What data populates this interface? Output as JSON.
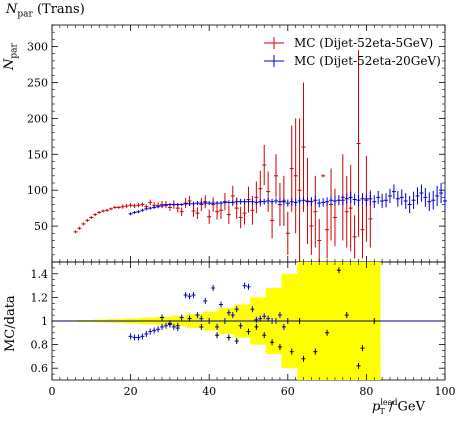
{
  "header": {
    "title_main": "N",
    "title_sub": "par",
    "title_rest": " (Trans)"
  },
  "axes": {
    "main_ylabel_main": "N",
    "main_ylabel_sub": "par",
    "ratio_ylabel": "MC/data",
    "xlabel_p": "p",
    "xlabel_sup": "lead",
    "xlabel_sub": "T",
    "xlabel_unit": " / GeV"
  },
  "legend": [
    {
      "label": "MC (Dijet-52eta-5GeV)",
      "color": "#cc0000"
    },
    {
      "label": "MC (Dijet-52eta-20GeV)",
      "color": "#0000cc"
    }
  ],
  "chart_data": {
    "type": "scatter",
    "x_range": [
      0,
      100
    ],
    "x_ticks": [
      0,
      20,
      40,
      60,
      80,
      100
    ],
    "main": {
      "ylim": [
        0,
        330
      ],
      "y_ticks": [
        50,
        100,
        150,
        200,
        250,
        300
      ],
      "series": [
        {
          "name": "MC (Dijet-52eta-5GeV)",
          "color": "#cc0000",
          "points": [
            [
              6,
              42,
              2
            ],
            [
              7,
              47,
              2
            ],
            [
              8,
              53,
              2
            ],
            [
              9,
              58,
              2
            ],
            [
              10,
              62,
              2
            ],
            [
              11,
              66,
              2
            ],
            [
              12,
              69,
              2
            ],
            [
              13,
              71,
              2
            ],
            [
              14,
              72,
              2
            ],
            [
              15,
              74,
              2
            ],
            [
              16,
              76,
              2
            ],
            [
              17,
              76,
              2
            ],
            [
              18,
              77,
              3
            ],
            [
              19,
              78,
              3
            ],
            [
              20,
              79,
              3
            ],
            [
              21,
              78,
              3
            ],
            [
              22,
              79,
              3
            ],
            [
              23,
              80,
              3
            ],
            [
              24,
              77,
              3
            ],
            [
              25,
              83,
              4
            ],
            [
              26,
              79,
              4
            ],
            [
              27,
              79,
              4
            ],
            [
              28,
              80,
              5
            ],
            [
              29,
              80,
              5
            ],
            [
              30,
              76,
              5
            ],
            [
              31,
              80,
              6
            ],
            [
              32,
              75,
              6
            ],
            [
              33,
              70,
              6
            ],
            [
              34,
              82,
              7
            ],
            [
              35,
              85,
              7
            ],
            [
              36,
              71,
              8
            ],
            [
              37,
              68,
              8
            ],
            [
              38,
              80,
              9
            ],
            [
              39,
              84,
              9
            ],
            [
              40,
              63,
              10
            ],
            [
              41,
              80,
              10
            ],
            [
              42,
              70,
              11
            ],
            [
              43,
              72,
              12
            ],
            [
              44,
              84,
              12
            ],
            [
              45,
              66,
              13
            ],
            [
              46,
              92,
              14
            ],
            [
              47,
              75,
              15
            ],
            [
              48,
              62,
              15
            ],
            [
              49,
              68,
              16
            ],
            [
              50,
              87,
              18
            ],
            [
              51,
              72,
              20
            ],
            [
              52,
              90,
              22
            ],
            [
              53,
              102,
              25
            ],
            [
              54,
              135,
              28
            ],
            [
              55,
              98,
              28
            ],
            [
              56,
              58,
              25
            ],
            [
              57,
              120,
              30
            ],
            [
              58,
              80,
              30
            ],
            [
              59,
              85,
              35
            ],
            [
              60,
              40,
              30
            ],
            [
              61,
              130,
              60
            ],
            [
              62,
              120,
              80
            ],
            [
              63,
              100,
              100
            ],
            [
              64,
              160,
              90
            ],
            [
              65,
              85,
              60
            ],
            [
              66,
              50,
              40
            ],
            [
              67,
              70,
              50
            ],
            [
              68,
              30,
              30
            ],
            [
              69,
              120,
              2
            ],
            [
              70,
              45,
              40
            ],
            [
              71,
              80,
              50
            ],
            [
              72,
              62,
              40
            ],
            [
              74,
              90,
              60
            ],
            [
              75,
              70,
              50
            ],
            [
              76,
              75,
              60
            ],
            [
              77,
              35,
              30
            ],
            [
              78,
              165,
              130
            ],
            [
              79,
              45,
              40
            ],
            [
              80,
              88,
              60
            ],
            [
              81,
              60,
              40
            ]
          ]
        },
        {
          "name": "MC (Dijet-52eta-20GeV)",
          "color": "#0000cc",
          "points": [
            [
              20,
              67,
              2
            ],
            [
              21,
              69,
              2
            ],
            [
              22,
              70,
              2
            ],
            [
              23,
              72,
              2
            ],
            [
              24,
              74,
              2
            ],
            [
              25,
              75,
              2
            ],
            [
              26,
              76,
              2
            ],
            [
              27,
              77,
              2
            ],
            [
              28,
              78,
              2
            ],
            [
              29,
              79,
              2
            ],
            [
              30,
              80,
              2
            ],
            [
              31,
              80,
              2
            ],
            [
              32,
              80,
              2
            ],
            [
              33,
              80,
              2
            ],
            [
              34,
              81,
              2
            ],
            [
              35,
              81,
              3
            ],
            [
              36,
              81,
              3
            ],
            [
              37,
              82,
              3
            ],
            [
              38,
              82,
              3
            ],
            [
              39,
              82,
              3
            ],
            [
              40,
              82,
              3
            ],
            [
              41,
              82,
              3
            ],
            [
              42,
              82,
              3
            ],
            [
              43,
              82,
              3
            ],
            [
              44,
              83,
              3
            ],
            [
              45,
              83,
              3
            ],
            [
              46,
              83,
              3
            ],
            [
              47,
              84,
              4
            ],
            [
              48,
              84,
              4
            ],
            [
              49,
              84,
              4
            ],
            [
              50,
              84,
              4
            ],
            [
              51,
              84,
              4
            ],
            [
              52,
              83,
              4
            ],
            [
              53,
              84,
              4
            ],
            [
              54,
              84,
              4
            ],
            [
              55,
              85,
              4
            ],
            [
              56,
              84,
              4
            ],
            [
              57,
              85,
              4
            ],
            [
              58,
              84,
              5
            ],
            [
              59,
              84,
              5
            ],
            [
              60,
              82,
              5
            ],
            [
              61,
              84,
              5
            ],
            [
              62,
              83,
              5
            ],
            [
              63,
              85,
              5
            ],
            [
              64,
              86,
              5
            ],
            [
              65,
              84,
              5
            ],
            [
              66,
              84,
              6
            ],
            [
              67,
              86,
              6
            ],
            [
              68,
              82,
              6
            ],
            [
              69,
              83,
              6
            ],
            [
              70,
              84,
              6
            ],
            [
              71,
              86,
              6
            ],
            [
              72,
              85,
              7
            ],
            [
              73,
              86,
              7
            ],
            [
              74,
              86,
              7
            ],
            [
              75,
              88,
              7
            ],
            [
              76,
              90,
              8
            ],
            [
              77,
              87,
              8
            ],
            [
              78,
              86,
              8
            ],
            [
              79,
              88,
              8
            ],
            [
              80,
              86,
              9
            ],
            [
              81,
              88,
              9
            ],
            [
              82,
              84,
              9
            ],
            [
              83,
              90,
              9
            ],
            [
              84,
              85,
              10
            ],
            [
              85,
              86,
              10
            ],
            [
              86,
              92,
              10
            ],
            [
              87,
              98,
              10
            ],
            [
              88,
              88,
              11
            ],
            [
              89,
              90,
              11
            ],
            [
              90,
              85,
              11
            ],
            [
              91,
              80,
              12
            ],
            [
              92,
              86,
              12
            ],
            [
              93,
              92,
              12
            ],
            [
              94,
              96,
              12
            ],
            [
              95,
              90,
              13
            ],
            [
              96,
              84,
              13
            ],
            [
              97,
              86,
              13
            ],
            [
              98,
              92,
              14
            ],
            [
              99,
              96,
              14
            ],
            [
              100,
              85,
              14
            ]
          ]
        }
      ]
    },
    "ratio": {
      "ylim": [
        0.5,
        1.5
      ],
      "y_ticks": [
        0.6,
        0.8,
        1,
        1.2,
        1.4
      ],
      "y_tick_labels": [
        "0.6",
        "0.8",
        "1",
        "1.2",
        "1.4"
      ],
      "band_color": "#ffff00",
      "band": [
        [
          4,
          0.005
        ],
        [
          8,
          0.008
        ],
        [
          12,
          0.012
        ],
        [
          16,
          0.016
        ],
        [
          20,
          0.022
        ],
        [
          24,
          0.028
        ],
        [
          28,
          0.035
        ],
        [
          32,
          0.045
        ],
        [
          36,
          0.06
        ],
        [
          40,
          0.08
        ],
        [
          44,
          0.11
        ],
        [
          48,
          0.14
        ],
        [
          52,
          0.2
        ],
        [
          56,
          0.28
        ],
        [
          60,
          0.4
        ],
        [
          64,
          0.5
        ],
        [
          68,
          0.5
        ],
        [
          72,
          0.5
        ],
        [
          76,
          0.5
        ],
        [
          80,
          0.5
        ],
        [
          82,
          0.5
        ]
      ],
      "series": [
        {
          "name": "MC (Dijet-52eta-5GeV)",
          "color": "#000000",
          "points": [
            [
              28,
              1.03
            ],
            [
              30,
              0.98
            ],
            [
              32,
              0.96
            ],
            [
              35,
              1.02
            ],
            [
              38,
              0.95
            ],
            [
              42,
              0.88
            ],
            [
              45,
              0.86
            ],
            [
              47,
              0.83
            ],
            [
              50,
              0.91
            ],
            [
              52,
              0.95
            ],
            [
              54,
              0.88
            ],
            [
              56,
              0.82
            ],
            [
              58,
              0.78
            ],
            [
              61,
              0.74
            ],
            [
              63,
              1.0
            ],
            [
              64,
              0.68
            ],
            [
              67,
              0.74
            ],
            [
              70,
              0.9
            ],
            [
              73,
              1.43
            ],
            [
              75,
              1.05
            ],
            [
              78,
              0.62
            ],
            [
              79,
              0.77
            ],
            [
              82,
              1.0
            ]
          ]
        },
        {
          "name": "MC (Dijet-52eta-20GeV)",
          "color": "#0000cc",
          "points": [
            [
              20,
              0.87
            ],
            [
              21,
              0.86
            ],
            [
              22,
              0.86
            ],
            [
              23,
              0.87
            ],
            [
              24,
              0.89
            ],
            [
              25,
              0.91
            ],
            [
              26,
              0.92
            ],
            [
              27,
              0.93
            ],
            [
              28,
              0.95
            ],
            [
              29,
              0.96
            ],
            [
              30,
              0.97
            ],
            [
              31,
              0.95
            ],
            [
              32,
              0.94
            ],
            [
              33,
              1.03
            ],
            [
              34,
              1.22
            ],
            [
              35,
              1.21
            ],
            [
              36,
              1.22
            ],
            [
              37,
              1.05
            ],
            [
              38,
              1.02
            ],
            [
              39,
              1.17
            ],
            [
              40,
              1.0
            ],
            [
              41,
              1.28
            ],
            [
              42,
              0.95
            ],
            [
              43,
              1.14
            ],
            [
              44,
              1.0
            ],
            [
              45,
              1.07
            ],
            [
              46,
              1.05
            ],
            [
              47,
              1.1
            ],
            [
              48,
              0.96
            ],
            [
              49,
              1.3
            ],
            [
              50,
              1.29
            ],
            [
              51,
              1.1
            ],
            [
              52,
              1.01
            ],
            [
              53,
              1.02
            ],
            [
              54,
              1.04
            ],
            [
              55,
              1.02
            ],
            [
              56,
              1.0
            ],
            [
              57,
              1.0
            ],
            [
              58,
              1.05
            ],
            [
              59,
              0.95
            ],
            [
              60,
              1.0
            ]
          ]
        }
      ]
    }
  }
}
